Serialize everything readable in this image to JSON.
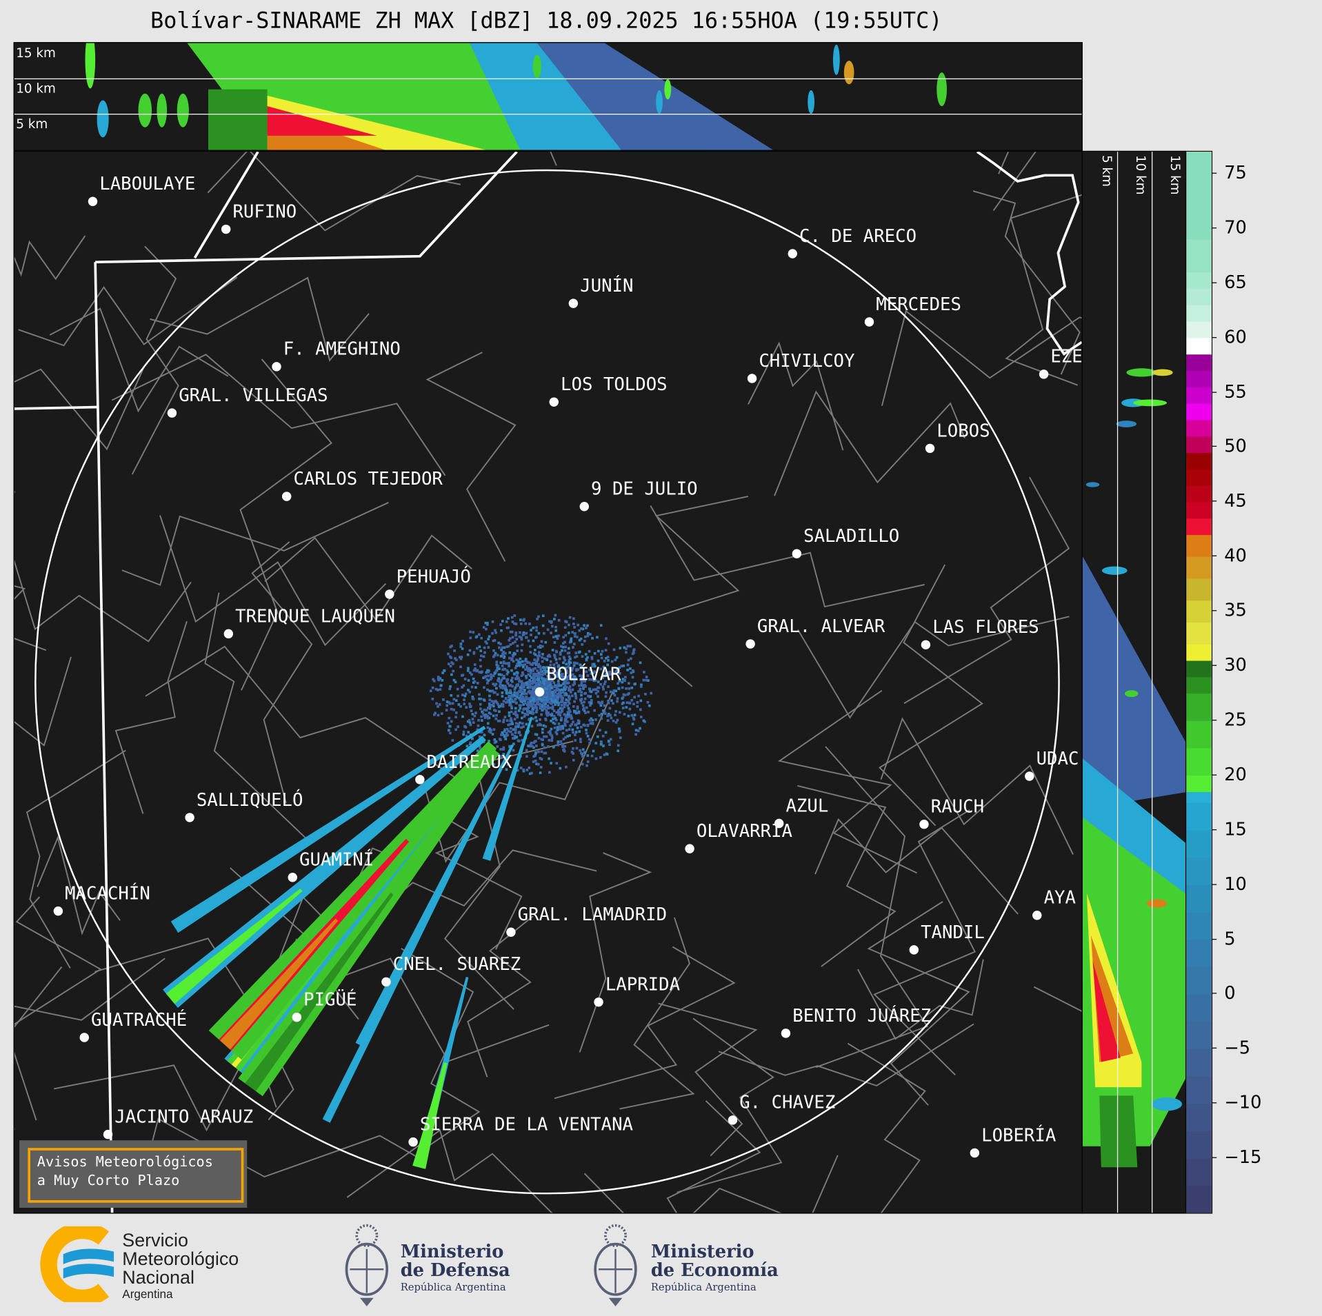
{
  "title": "Bolívar-SINARAME ZH MAX [dBZ] 18.09.2025 16:55HOA (19:55UTC)",
  "top_cross_section": {
    "height_labels": [
      "15 km",
      "10 km",
      "5 km"
    ]
  },
  "right_cross_section": {
    "height_labels": [
      "5 km",
      "10 km",
      "15 km"
    ]
  },
  "colorbar": {
    "unit": "dBZ",
    "range": [
      -20,
      77
    ],
    "ticks": [
      75,
      70,
      65,
      60,
      55,
      50,
      45,
      40,
      35,
      30,
      25,
      20,
      15,
      10,
      5,
      0,
      -5,
      -10,
      -15
    ],
    "tick_labels": [
      "75",
      "70",
      "65",
      "60",
      "55",
      "50",
      "45",
      "40",
      "35",
      "30",
      "25",
      "20",
      "15",
      "10",
      "5",
      "0",
      "−5",
      "−10",
      "−15"
    ],
    "bands": [
      {
        "from": -20,
        "to": -17.5,
        "color": "#3b3f6e"
      },
      {
        "from": -17.5,
        "to": -15,
        "color": "#3d4677"
      },
      {
        "from": -15,
        "to": -12.5,
        "color": "#3e4d80"
      },
      {
        "from": -12.5,
        "to": -10,
        "color": "#3f5488"
      },
      {
        "from": -10,
        "to": -7.5,
        "color": "#3f5b90"
      },
      {
        "from": -7.5,
        "to": -5,
        "color": "#3e6297"
      },
      {
        "from": -5,
        "to": -2.5,
        "color": "#3c699e"
      },
      {
        "from": -2.5,
        "to": 0,
        "color": "#3970a4"
      },
      {
        "from": 0,
        "to": 2.5,
        "color": "#3677aa"
      },
      {
        "from": 2.5,
        "to": 5,
        "color": "#327eb0"
      },
      {
        "from": 5,
        "to": 7.5,
        "color": "#2e86b6"
      },
      {
        "from": 7.5,
        "to": 10,
        "color": "#2a8ebb"
      },
      {
        "from": 10,
        "to": 12.5,
        "color": "#2896c1"
      },
      {
        "from": 12.5,
        "to": 15,
        "color": "#269dc7"
      },
      {
        "from": 15,
        "to": 17.5,
        "color": "#25a6d0"
      },
      {
        "from": 17.5,
        "to": 18.5,
        "color": "#28b0d8"
      },
      {
        "from": 18.5,
        "to": 20,
        "color": "#55ee33"
      },
      {
        "from": 20,
        "to": 22.5,
        "color": "#48dc30"
      },
      {
        "from": 22.5,
        "to": 25,
        "color": "#40c82c"
      },
      {
        "from": 25,
        "to": 27.5,
        "color": "#36b028"
      },
      {
        "from": 27.5,
        "to": 29,
        "color": "#2b9222"
      },
      {
        "from": 29,
        "to": 30.5,
        "color": "#22731c"
      },
      {
        "from": 30.5,
        "to": 32,
        "color": "#eeee33"
      },
      {
        "from": 32,
        "to": 34,
        "color": "#e4e240"
      },
      {
        "from": 34,
        "to": 36,
        "color": "#d6d236"
      },
      {
        "from": 36,
        "to": 38,
        "color": "#cab62c"
      },
      {
        "from": 38,
        "to": 40,
        "color": "#d49a22"
      },
      {
        "from": 40,
        "to": 42,
        "color": "#dd7d16"
      },
      {
        "from": 42,
        "to": 43.5,
        "color": "#ee1133"
      },
      {
        "from": 43.5,
        "to": 45,
        "color": "#cc0022"
      },
      {
        "from": 45,
        "to": 46.5,
        "color": "#bb0018"
      },
      {
        "from": 46.5,
        "to": 48,
        "color": "#aa0008"
      },
      {
        "from": 48,
        "to": 49.5,
        "color": "#990000"
      },
      {
        "from": 49.5,
        "to": 51,
        "color": "#c0005a"
      },
      {
        "from": 51,
        "to": 52.5,
        "color": "#d8009a"
      },
      {
        "from": 52.5,
        "to": 54,
        "color": "#ee00ee"
      },
      {
        "from": 54,
        "to": 55.5,
        "color": "#cc00cc"
      },
      {
        "from": 55.5,
        "to": 57,
        "color": "#b000b4"
      },
      {
        "from": 57,
        "to": 58.5,
        "color": "#990099"
      },
      {
        "from": 58.5,
        "to": 60,
        "color": "#ffffff"
      },
      {
        "from": 60,
        "to": 61.5,
        "color": "#dff4ea"
      },
      {
        "from": 61.5,
        "to": 63,
        "color": "#c6f0de"
      },
      {
        "from": 63,
        "to": 64.5,
        "color": "#b4ebd4"
      },
      {
        "from": 64.5,
        "to": 66,
        "color": "#a6e8cc"
      },
      {
        "from": 66,
        "to": 69,
        "color": "#96e3c4"
      },
      {
        "from": 69,
        "to": 77,
        "color": "#88ddbc"
      }
    ]
  },
  "map": {
    "radar": "BOLÍVAR",
    "cities": [
      {
        "name": "LABOULAYE"
      },
      {
        "name": "RUFINO"
      },
      {
        "name": "C. DE ARECO"
      },
      {
        "name": "JUNÍN"
      },
      {
        "name": "MERCEDES"
      },
      {
        "name": "F. AMEGHINO"
      },
      {
        "name": "CHIVILCOY"
      },
      {
        "name": "EZE"
      },
      {
        "name": "LOS TOLDOS"
      },
      {
        "name": "GRAL. VILLEGAS"
      },
      {
        "name": "LOBOS"
      },
      {
        "name": "CARLOS TEJEDOR"
      },
      {
        "name": "9 DE JULIO"
      },
      {
        "name": "SALADILLO"
      },
      {
        "name": "PEHUAJÓ"
      },
      {
        "name": "TRENQUE LAUQUEN"
      },
      {
        "name": "GRAL. ALVEAR"
      },
      {
        "name": "LAS FLORES"
      },
      {
        "name": "BOLÍVAR"
      },
      {
        "name": "DAIREAUX"
      },
      {
        "name": "UDAC"
      },
      {
        "name": "SALLIQUELÓ"
      },
      {
        "name": "AZUL"
      },
      {
        "name": "RAUCH"
      },
      {
        "name": "OLAVARRÍA"
      },
      {
        "name": "GUAMINÍ"
      },
      {
        "name": "MACACHÍN"
      },
      {
        "name": "AYA"
      },
      {
        "name": "GRAL. LAMADRID"
      },
      {
        "name": "TANDIL"
      },
      {
        "name": "CNEL. SUAREZ"
      },
      {
        "name": "LAPRIDA"
      },
      {
        "name": "PIGÜÉ"
      },
      {
        "name": "GUATRACHÉ"
      },
      {
        "name": "BENITO JUÁREZ"
      },
      {
        "name": "G. CHAVEZ"
      },
      {
        "name": "JACINTO ARAUZ"
      },
      {
        "name": "SIERRA DE LA VENTANA"
      },
      {
        "name": "LOBERÍA"
      }
    ]
  },
  "warning_box": {
    "line1": "Avisos Meteorológicos",
    "line2": "a Muy Corto Plazo",
    "border_color": "#f5a300"
  },
  "logos": {
    "smn": {
      "line1": "Servicio",
      "line2": "Meteorológico",
      "line3": "Nacional",
      "line4": "Argentina"
    },
    "defensa": {
      "line1": "Ministerio",
      "line2": "de Defensa",
      "line3": "República Argentina"
    },
    "economia": {
      "line1": "Ministerio",
      "line2": "de Economía",
      "line3": "República Argentina"
    }
  }
}
